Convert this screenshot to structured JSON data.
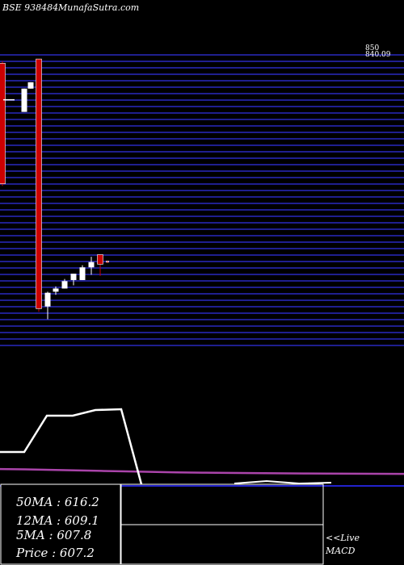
{
  "header": {
    "symbol": "BSE 938484",
    "site": "MunafaSutra.com"
  },
  "colors": {
    "background": "#000000",
    "grid": "#1f1f8f",
    "bull": "#ffffff",
    "bear": "#cc0000",
    "ma_line": "#ffffff",
    "macd_signal": "#aa44aa",
    "zero_line": "#2222cc"
  },
  "chart_data": [
    {
      "type": "candlestick",
      "y_tick_labels": [
        "850",
        "840.09"
      ],
      "candles": [
        {
          "open": 836,
          "high": 838,
          "low": 720,
          "close": 722
        },
        {
          "open": 802,
          "high": 802,
          "low": 802,
          "close": 802
        },
        {
          "open": 790,
          "high": 812,
          "low": 790,
          "close": 812
        },
        {
          "open": 812,
          "high": 818,
          "low": 812,
          "close": 818
        },
        {
          "open": 840,
          "high": 840,
          "low": 601,
          "close": 604
        },
        {
          "open": 606,
          "high": 620,
          "low": 594,
          "close": 619
        },
        {
          "open": 620,
          "high": 625,
          "low": 617,
          "close": 623
        },
        {
          "open": 623,
          "high": 632,
          "low": 623,
          "close": 630
        },
        {
          "open": 631,
          "high": 637,
          "low": 626,
          "close": 637
        },
        {
          "open": 631,
          "high": 645,
          "low": 631,
          "close": 643
        },
        {
          "open": 643,
          "high": 653,
          "low": 636,
          "close": 648
        },
        {
          "open": 655,
          "high": 655,
          "low": 635,
          "close": 646
        },
        {
          "open": 649,
          "high": 649,
          "low": 647,
          "close": 648
        }
      ]
    },
    {
      "type": "line",
      "name": "Live MACD",
      "series": [
        {
          "role": "macd",
          "values": [
            40,
            40,
            54,
            69,
            69,
            70,
            72,
            73,
            13,
            5,
            5,
            7,
            8,
            12,
            13,
            10,
            7
          ]
        },
        {
          "role": "signal",
          "values": [
            15,
            14.7,
            14.2,
            13.7,
            13.2,
            12.7,
            12.2,
            11.7,
            11.4,
            11.2,
            11,
            10.8,
            10.6,
            10.5,
            10.4,
            10.3,
            10.2
          ]
        }
      ]
    }
  ],
  "info": {
    "ma50": "50MA : 616.2",
    "ma12": "12MA : 609.1",
    "ma5": "5MA : 607.8",
    "price": "Price   : 607.2"
  },
  "macd_box": {
    "line1": "<<Live",
    "line2": "MACD"
  }
}
